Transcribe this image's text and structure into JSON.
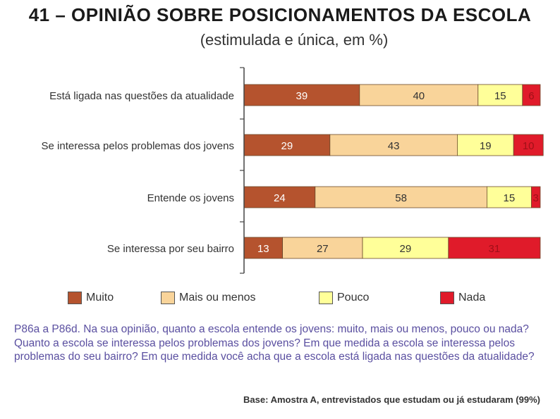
{
  "header": {
    "title": "41 – OPINIÃO SOBRE POSICIONAMENTOS DA ESCOLA",
    "subtitle": "(estimulada e única, em %)"
  },
  "chart_data": {
    "type": "bar",
    "orientation": "horizontal",
    "stacked": true,
    "title": "41 – Opinião sobre posicionamentos da escola",
    "subtitle": "(estimulada e única, em %)",
    "categories": [
      "Está ligada nas questões da atualidade",
      "Se interessa pelos problemas dos jovens",
      "Entende os jovens",
      "Se interessa por seu bairro"
    ],
    "series": [
      {
        "name": "Muito",
        "color": "#b5532e",
        "label_color": "#ffffff",
        "values": [
          39,
          29,
          24,
          13
        ]
      },
      {
        "name": "Mais ou menos",
        "color": "#f9d49a",
        "label_color": "#333333",
        "values": [
          40,
          43,
          58,
          27
        ]
      },
      {
        "name": "Pouco",
        "color": "#ffff99",
        "label_color": "#333333",
        "values": [
          15,
          19,
          15,
          29
        ]
      },
      {
        "name": "Nada",
        "color": "#e01b2a",
        "label_color": "#a01018",
        "values": [
          6,
          10,
          3,
          31
        ]
      }
    ],
    "xlim": [
      0,
      100
    ],
    "xlabel": "",
    "ylabel": "",
    "legend": "bottom"
  },
  "legend": {
    "items": [
      {
        "label": "Muito",
        "color": "#b5532e"
      },
      {
        "label": "Mais ou menos",
        "color": "#f9d49a"
      },
      {
        "label": "Pouco",
        "color": "#ffff99"
      },
      {
        "label": "Nada",
        "color": "#e01b2a"
      }
    ]
  },
  "footer": {
    "question": "P86a a P86d. Na sua opinião, quanto a escola entende os jovens: muito, mais ou menos, pouco ou nada? Quanto a escola se interessa pelos problemas dos jovens? Em que medida a escola se interessa pelos problemas do seu bairro? Em que medida você acha que a escola está ligada nas questões da atualidade?",
    "base": "Base: Amostra A, entrevistados que estudam ou já estudaram (99%)"
  }
}
